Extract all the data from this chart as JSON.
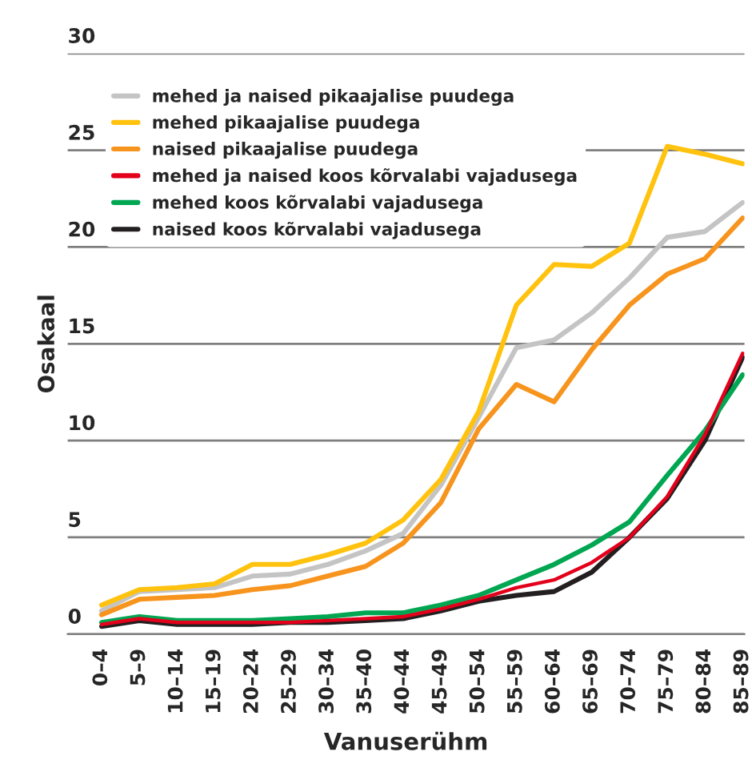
{
  "chart_data": {
    "type": "line",
    "xlabel": "Vanuserühm",
    "ylabel": "Osakaal",
    "categories": [
      "0–4",
      "5–9",
      "10–14",
      "15–19",
      "20–24",
      "25–29",
      "30–34",
      "35–40",
      "40–44",
      "45–49",
      "50–54",
      "55–59",
      "60–64",
      "65–69",
      "70–74",
      "75–79",
      "80–84",
      "85–89"
    ],
    "ylim": [
      0,
      30
    ],
    "yticks": [
      0,
      5,
      10,
      15,
      20,
      25,
      30
    ],
    "grid": "y",
    "legend": "top left",
    "marker": "none",
    "line_style": "solid",
    "series": [
      {
        "name": "mehed ja naised pikaajalise puudega",
        "color": "#c4c4c4",
        "values": [
          1.2,
          2.2,
          2.3,
          2.4,
          3.0,
          3.1,
          3.6,
          4.3,
          5.2,
          7.7,
          11.2,
          14.8,
          15.2,
          16.6,
          18.4,
          20.5,
          20.8,
          22.3
        ]
      },
      {
        "name": "mehed pikaajalise puudega",
        "color": "#ffc20e",
        "values": [
          1.5,
          2.3,
          2.4,
          2.6,
          3.6,
          3.6,
          4.1,
          4.7,
          5.9,
          8.0,
          11.5,
          17.0,
          19.1,
          19.0,
          20.2,
          25.2,
          24.8,
          24.3
        ]
      },
      {
        "name": "naised pikaajalise puudega",
        "color": "#f7941d",
        "values": [
          1.0,
          1.8,
          1.9,
          2.0,
          2.3,
          2.5,
          3.0,
          3.5,
          4.7,
          6.8,
          10.6,
          12.9,
          12.0,
          14.7,
          17.0,
          18.6,
          19.4,
          21.5
        ]
      },
      {
        "name": "mehed ja naised koos kõrvalabi vajadusega",
        "color": "#e3001b",
        "values": [
          0.5,
          0.8,
          0.6,
          0.6,
          0.6,
          0.6,
          0.7,
          0.8,
          0.9,
          1.3,
          1.8,
          2.4,
          2.8,
          3.7,
          5.0,
          7.1,
          10.3,
          14.5
        ]
      },
      {
        "name": "mehed koos kõrvalabi vajadusega",
        "color": "#00a651",
        "values": [
          0.6,
          0.9,
          0.7,
          0.7,
          0.7,
          0.8,
          0.9,
          1.1,
          1.1,
          1.5,
          2.0,
          2.8,
          3.6,
          4.6,
          5.8,
          8.2,
          10.5,
          13.4
        ]
      },
      {
        "name": "naised koos kõrvalabi vajadusega",
        "color": "#231f20",
        "values": [
          0.4,
          0.7,
          0.5,
          0.5,
          0.5,
          0.6,
          0.6,
          0.7,
          0.8,
          1.2,
          1.7,
          2.0,
          2.2,
          3.2,
          5.0,
          7.0,
          10.0,
          14.3
        ]
      }
    ]
  }
}
